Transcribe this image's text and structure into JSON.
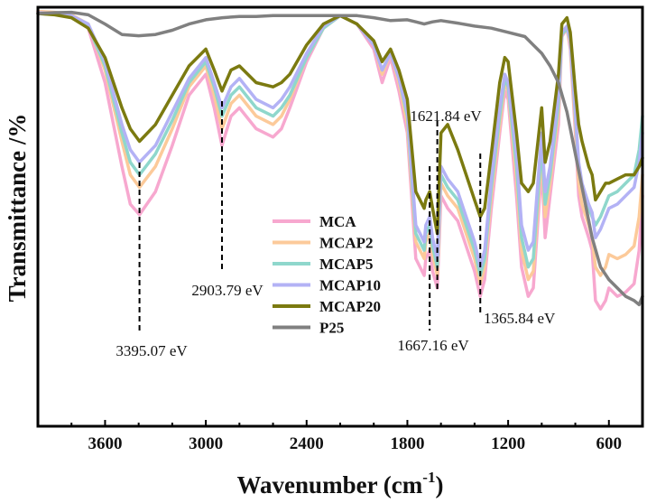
{
  "chart_data": {
    "type": "line",
    "title": "",
    "xlabel": "Wavenumber (cm",
    "xlabel_sup": "-1",
    "xlabel_end": ")",
    "ylabel": "Transmittance /%",
    "x_reversed": true,
    "xlim": [
      4000,
      400
    ],
    "ylim": [
      0,
      100
    ],
    "x_ticks": [
      3600,
      3000,
      2400,
      1800,
      1200,
      600
    ],
    "x_tick_labels": [
      "3600",
      "3000",
      "2400",
      "1800",
      "1200",
      "600"
    ],
    "annotations": [
      {
        "text": "3395.07 eV",
        "x": 3395.07
      },
      {
        "text": "2903.79 eV",
        "x": 2903.79
      },
      {
        "text": "1667.16 eV",
        "x": 1667.16
      },
      {
        "text": "1621.84 eV",
        "x": 1621.84
      },
      {
        "text": "1365.84 eV",
        "x": 1365.84
      }
    ],
    "legend_position": "center",
    "series": [
      {
        "name": "MCA",
        "color": "#f7a8cf",
        "x": [
          4000,
          3900,
          3800,
          3700,
          3600,
          3500,
          3450,
          3395,
          3300,
          3200,
          3100,
          3000,
          2950,
          2904,
          2850,
          2800,
          2700,
          2600,
          2550,
          2500,
          2400,
          2300,
          2200,
          2100,
          2000,
          1950,
          1900,
          1850,
          1800,
          1750,
          1700,
          1690,
          1667,
          1650,
          1622,
          1600,
          1560,
          1500,
          1450,
          1400,
          1366,
          1340,
          1300,
          1250,
          1220,
          1200,
          1150,
          1120,
          1080,
          1050,
          1000,
          980,
          950,
          900,
          880,
          850,
          830,
          800,
          780,
          760,
          720,
          700,
          680,
          650,
          620,
          600,
          550,
          500,
          450,
          420,
          400
        ],
        "y": [
          99,
          98.7,
          98,
          95,
          82,
          62,
          53,
          50.5,
          56,
          67,
          79,
          84,
          76,
          67,
          74,
          76,
          71,
          69,
          71,
          76,
          87,
          95,
          98,
          96,
          90,
          82,
          88,
          80,
          70,
          40,
          36,
          40,
          42,
          37,
          33,
          55,
          52,
          49,
          43,
          37,
          31,
          35,
          52,
          70,
          80,
          78,
          55,
          38,
          31,
          33,
          62,
          45,
          55,
          72,
          93,
          95,
          90,
          70,
          55,
          50,
          45,
          42,
          30,
          28,
          30,
          33,
          31,
          32,
          34,
          42,
          55
        ]
      },
      {
        "name": "MCAP2",
        "color": "#fcca9a",
        "x": [
          4000,
          3900,
          3800,
          3700,
          3600,
          3500,
          3450,
          3395,
          3300,
          3200,
          3100,
          3000,
          2950,
          2904,
          2850,
          2800,
          2700,
          2600,
          2550,
          2500,
          2400,
          2300,
          2200,
          2100,
          2000,
          1950,
          1900,
          1850,
          1800,
          1750,
          1700,
          1690,
          1667,
          1650,
          1622,
          1600,
          1560,
          1500,
          1450,
          1400,
          1366,
          1340,
          1300,
          1250,
          1220,
          1200,
          1150,
          1120,
          1080,
          1050,
          1000,
          980,
          950,
          900,
          880,
          850,
          830,
          800,
          780,
          760,
          720,
          700,
          680,
          650,
          620,
          600,
          550,
          500,
          450,
          420,
          400
        ],
        "y": [
          99,
          98.8,
          98.2,
          96,
          85,
          68,
          60,
          57,
          62,
          71,
          81,
          86,
          79,
          71,
          77,
          79,
          74,
          72,
          74,
          78,
          88,
          95,
          98,
          96,
          91,
          84,
          89,
          82,
          72,
          44,
          40,
          44,
          46,
          41,
          36,
          58,
          55,
          52,
          46,
          40,
          34,
          38,
          55,
          72,
          82,
          80,
          59,
          42,
          35,
          37,
          65,
          50,
          58,
          75,
          93.5,
          95,
          91,
          72,
          58,
          53,
          48,
          45,
          38,
          36,
          38,
          41,
          40,
          41,
          43,
          50,
          60
        ]
      },
      {
        "name": "MCAP5",
        "color": "#8fd7cc",
        "x": [
          4000,
          3900,
          3800,
          3700,
          3600,
          3500,
          3450,
          3395,
          3300,
          3200,
          3100,
          3000,
          2950,
          2904,
          2850,
          2800,
          2700,
          2600,
          2550,
          2500,
          2400,
          2300,
          2200,
          2100,
          2000,
          1950,
          1900,
          1850,
          1800,
          1750,
          1700,
          1690,
          1667,
          1650,
          1622,
          1600,
          1560,
          1500,
          1450,
          1400,
          1366,
          1340,
          1300,
          1250,
          1220,
          1200,
          1150,
          1120,
          1080,
          1050,
          1000,
          980,
          950,
          900,
          880,
          850,
          830,
          800,
          780,
          760,
          720,
          700,
          680,
          650,
          620,
          600,
          550,
          500,
          450,
          420,
          400
        ],
        "y": [
          98.5,
          98.3,
          97.8,
          95.5,
          86,
          70,
          63,
          60,
          65,
          73,
          82,
          87,
          81,
          74,
          79,
          81,
          76,
          74,
          76,
          79,
          88,
          95,
          98,
          96,
          91,
          85,
          89,
          83,
          74,
          46,
          42,
          46,
          48,
          43,
          38,
          60,
          57,
          54,
          48,
          42,
          36,
          40,
          57,
          74,
          83,
          81,
          62,
          45,
          38,
          40,
          67,
          53,
          60,
          77,
          93.5,
          95,
          92,
          74,
          62,
          57,
          52,
          50,
          48,
          50,
          53,
          55,
          56,
          58,
          60,
          66,
          74
        ]
      },
      {
        "name": "MCAP10",
        "color": "#b3b2f5",
        "x": [
          4000,
          3900,
          3800,
          3700,
          3600,
          3500,
          3450,
          3395,
          3300,
          3200,
          3100,
          3000,
          2950,
          2904,
          2850,
          2800,
          2700,
          2600,
          2550,
          2500,
          2400,
          2300,
          2200,
          2100,
          2000,
          1950,
          1900,
          1850,
          1800,
          1750,
          1700,
          1690,
          1667,
          1650,
          1622,
          1600,
          1560,
          1500,
          1450,
          1400,
          1366,
          1340,
          1300,
          1250,
          1220,
          1200,
          1150,
          1120,
          1080,
          1050,
          1000,
          980,
          950,
          900,
          880,
          850,
          830,
          800,
          780,
          760,
          720,
          700,
          680,
          650,
          620,
          600,
          550,
          500,
          450,
          420,
          400
        ],
        "y": [
          98.7,
          98.5,
          98,
          96,
          87,
          72,
          66,
          63,
          67,
          75,
          83,
          88,
          82,
          76,
          81,
          83,
          78,
          76,
          78,
          81,
          89,
          95.5,
          98,
          96,
          91,
          85,
          89,
          83,
          75,
          48,
          44,
          48,
          50,
          45,
          40,
          62,
          59,
          56,
          50,
          44,
          38,
          42,
          59,
          76,
          84,
          82,
          65,
          48,
          42,
          44,
          70,
          56,
          62,
          79,
          94,
          95.5,
          92,
          75,
          63,
          58,
          53,
          51,
          45,
          47,
          50,
          52,
          53,
          55,
          57,
          63,
          70
        ]
      },
      {
        "name": "MCAP20",
        "color": "#7b7a10",
        "x": [
          4000,
          3900,
          3800,
          3700,
          3600,
          3500,
          3450,
          3395,
          3300,
          3200,
          3100,
          3000,
          2950,
          2904,
          2850,
          2800,
          2700,
          2600,
          2550,
          2500,
          2400,
          2300,
          2200,
          2100,
          2000,
          1950,
          1900,
          1850,
          1800,
          1750,
          1700,
          1690,
          1667,
          1650,
          1622,
          1600,
          1560,
          1500,
          1450,
          1400,
          1366,
          1340,
          1300,
          1250,
          1220,
          1200,
          1150,
          1120,
          1080,
          1050,
          1000,
          980,
          950,
          900,
          880,
          850,
          830,
          800,
          780,
          760,
          720,
          700,
          680,
          650,
          620,
          600,
          550,
          500,
          450,
          420,
          400
        ],
        "y": [
          98.5,
          98.2,
          97.5,
          95,
          88,
          76,
          71,
          68,
          72,
          79,
          86,
          90,
          85,
          80,
          85,
          86,
          82,
          81,
          82,
          84,
          91,
          96,
          98,
          96,
          92,
          87,
          90,
          85,
          78,
          56,
          52,
          54,
          56,
          52,
          46,
          70,
          72,
          66,
          60,
          54,
          50,
          52,
          65,
          82,
          88,
          87,
          70,
          58,
          56,
          58,
          76,
          63,
          68,
          84,
          96,
          97.5,
          94,
          80,
          72,
          68,
          62,
          60,
          54,
          56,
          58,
          58,
          59,
          60,
          60,
          62,
          64
        ]
      },
      {
        "name": "P25",
        "color": "#808080",
        "x": [
          4000,
          3900,
          3800,
          3700,
          3600,
          3500,
          3400,
          3300,
          3200,
          3100,
          3000,
          2900,
          2800,
          2700,
          2600,
          2500,
          2400,
          2300,
          2200,
          2100,
          2000,
          1900,
          1800,
          1750,
          1700,
          1650,
          1600,
          1500,
          1400,
          1300,
          1200,
          1100,
          1050,
          1000,
          950,
          900,
          850,
          800,
          750,
          700,
          650,
          600,
          550,
          500,
          450,
          420,
          400
        ],
        "y": [
          98.5,
          98.7,
          98.8,
          98.2,
          96,
          93.5,
          93.2,
          93.5,
          94.5,
          96,
          97,
          97.5,
          97.8,
          97.8,
          98,
          98,
          98,
          98,
          98,
          98,
          97.5,
          96.8,
          97,
          96.5,
          96,
          96.5,
          96.8,
          96.2,
          95.5,
          95,
          94,
          93,
          91,
          89,
          86,
          82,
          75,
          65,
          55,
          45,
          38,
          35,
          33,
          31,
          30,
          29,
          31
        ]
      }
    ]
  }
}
